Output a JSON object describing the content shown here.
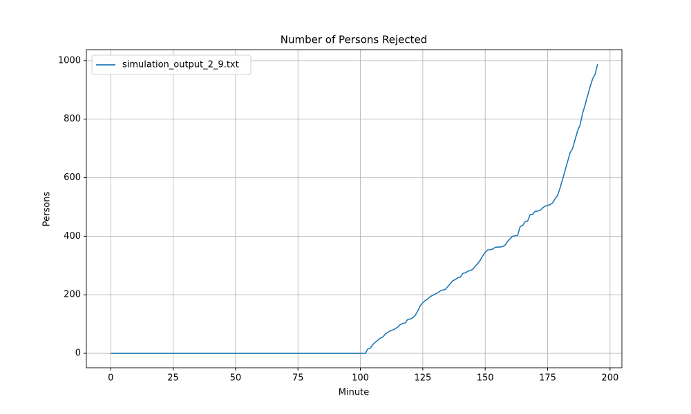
{
  "chart_data": {
    "type": "line",
    "title": "Number of Persons Rejected",
    "x_label": "Minute",
    "y_label": "Persons",
    "x": [
      0,
      102,
      103,
      104,
      105,
      106,
      107,
      108,
      109,
      110,
      111,
      112,
      113,
      114,
      115,
      116,
      117,
      118,
      119,
      120,
      121,
      122,
      123,
      124,
      125,
      126,
      127,
      128,
      129,
      130,
      131,
      132,
      133,
      134,
      135,
      136,
      137,
      138,
      139,
      140,
      141,
      142,
      143,
      144,
      145,
      146,
      147,
      148,
      149,
      150,
      151,
      152,
      153,
      154,
      155,
      156,
      157,
      158,
      159,
      160,
      161,
      162,
      163,
      164,
      165,
      166,
      167,
      168,
      169,
      170,
      171,
      172,
      173,
      174,
      175,
      176,
      177,
      178,
      179,
      180,
      181,
      182,
      183,
      184,
      185,
      186,
      187,
      188,
      189,
      190,
      191,
      192,
      193,
      194,
      195
    ],
    "series": [
      {
        "name": "simulation_output_2_9.txt",
        "color": "#1f77b4",
        "values": [
          0,
          0,
          15,
          18,
          30,
          38,
          45,
          52,
          56,
          66,
          72,
          77,
          80,
          84,
          90,
          98,
          102,
          104,
          116,
          117,
          122,
          130,
          145,
          163,
          173,
          180,
          186,
          194,
          198,
          203,
          207,
          213,
          216,
          218,
          228,
          238,
          248,
          252,
          258,
          260,
          273,
          275,
          280,
          283,
          287,
          297,
          307,
          318,
          333,
          345,
          353,
          354,
          356,
          362,
          363,
          363,
          365,
          370,
          383,
          392,
          400,
          401,
          403,
          433,
          437,
          450,
          452,
          474,
          475,
          485,
          486,
          488,
          497,
          503,
          505,
          508,
          514,
          528,
          540,
          565,
          595,
          625,
          655,
          685,
          700,
          730,
          760,
          780,
          820,
          848,
          880,
          910,
          937,
          953,
          988
        ]
      }
    ],
    "xlim": [
      -9.75,
      204.75
    ],
    "xticks": [
      0,
      25,
      50,
      75,
      100,
      125,
      150,
      175,
      200
    ],
    "ylim": [
      -49.4,
      1037.4
    ],
    "yticks": [
      0,
      200,
      400,
      600,
      800,
      1000
    ],
    "grid": true,
    "legend": "upper left"
  }
}
